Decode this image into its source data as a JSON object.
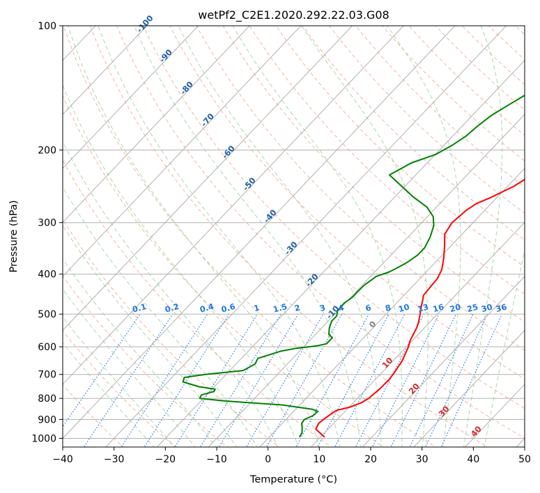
{
  "chart_data": {
    "type": "line",
    "title": "wetPf2_C2E1.2020.292.22.03.G08",
    "xlabel": "Temperature (°C)",
    "ylabel": "Pressure (hPa)",
    "xlim": [
      -40,
      50
    ],
    "ylim": [
      1050,
      100
    ],
    "y_scale": "log",
    "grid": true,
    "x_ticks": [
      -40,
      -30,
      -20,
      -10,
      0,
      10,
      20,
      30,
      40,
      50
    ],
    "y_ticks": [
      1000,
      900,
      800,
      700,
      600,
      500,
      400,
      300,
      200,
      100
    ],
    "series": [
      {
        "color": "#ff0000",
        "points": [
          [
            10.8,
            993
          ],
          [
            7.6,
            950
          ],
          [
            7.1,
            920
          ],
          [
            7.3,
            900
          ],
          [
            7.8,
            870
          ],
          [
            8.2,
            855
          ],
          [
            10.2,
            840
          ],
          [
            11.6,
            820
          ],
          [
            12.2,
            800
          ],
          [
            12.6,
            760
          ],
          [
            12.7,
            720
          ],
          [
            12.4,
            690
          ],
          [
            11.8,
            650
          ],
          [
            10.4,
            600
          ],
          [
            9.6,
            580
          ],
          [
            8.5,
            540
          ],
          [
            7.9,
            525
          ],
          [
            6.9,
            505
          ],
          [
            5.5,
            480
          ],
          [
            4.4,
            460
          ],
          [
            3.8,
            450
          ],
          [
            3.6,
            430
          ],
          [
            3.4,
            410
          ],
          [
            2.6,
            390
          ],
          [
            0.8,
            365
          ],
          [
            -1.4,
            340
          ],
          [
            -3.4,
            320
          ],
          [
            -4.1,
            300
          ],
          [
            -3.6,
            280
          ],
          [
            -2.9,
            270
          ],
          [
            -1.1,
            260
          ],
          [
            1.2,
            245
          ],
          [
            2.6,
            230
          ],
          [
            3.9,
            215
          ],
          [
            5.1,
            200
          ],
          [
            6.6,
            190
          ],
          [
            8.4,
            180
          ],
          [
            10.4,
            170
          ],
          [
            11.9,
            160
          ],
          [
            13.4,
            150
          ],
          [
            15.1,
            140
          ],
          [
            16.8,
            130
          ],
          [
            18.6,
            120
          ],
          [
            20.4,
            115
          ],
          [
            22.4,
            110
          ],
          [
            23.6,
            106
          ],
          [
            24.3,
            100
          ]
        ]
      },
      {
        "color": "#008000",
        "points": [
          [
            5.9,
            993
          ],
          [
            5.6,
            970
          ],
          [
            4.6,
            940
          ],
          [
            3.8,
            920
          ],
          [
            3.6,
            900
          ],
          [
            4.6,
            880
          ],
          [
            4.7,
            860
          ],
          [
            3.2,
            850
          ],
          [
            -3.3,
            830
          ],
          [
            -15.3,
            812
          ],
          [
            -20.7,
            800
          ],
          [
            -21.0,
            785
          ],
          [
            -19.2,
            770
          ],
          [
            -19.4,
            760
          ],
          [
            -22.9,
            750
          ],
          [
            -27.0,
            730
          ],
          [
            -27.6,
            712
          ],
          [
            -24.1,
            700
          ],
          [
            -17.4,
            685
          ],
          [
            -16.3,
            660
          ],
          [
            -16.8,
            640
          ],
          [
            -13.7,
            615
          ],
          [
            -11.2,
            605
          ],
          [
            -7.7,
            597
          ],
          [
            -6.1,
            590
          ],
          [
            -6.1,
            570
          ],
          [
            -7.4,
            560
          ],
          [
            -8.5,
            540
          ],
          [
            -9.3,
            520
          ],
          [
            -9.3,
            505
          ],
          [
            -10.1,
            490
          ],
          [
            -10.2,
            470
          ],
          [
            -9.7,
            455
          ],
          [
            -9.7,
            440
          ],
          [
            -9.6,
            425
          ],
          [
            -8.9,
            405
          ],
          [
            -7.2,
            395
          ],
          [
            -6.3,
            385
          ],
          [
            -5.5,
            375
          ],
          [
            -4.8,
            360
          ],
          [
            -4.8,
            345
          ],
          [
            -5.7,
            325
          ],
          [
            -7.1,
            305
          ],
          [
            -8.9,
            290
          ],
          [
            -11.9,
            275
          ],
          [
            -16.4,
            260
          ],
          [
            -20.6,
            245
          ],
          [
            -25.1,
            230
          ],
          [
            -23.1,
            215
          ],
          [
            -19.9,
            205
          ],
          [
            -18.4,
            195
          ],
          [
            -17.4,
            185
          ],
          [
            -17.0,
            175
          ],
          [
            -16.3,
            165
          ],
          [
            -14.8,
            155
          ],
          [
            -13.1,
            145
          ],
          [
            -11.5,
            135
          ],
          [
            -9.9,
            126
          ],
          [
            -8.1,
            118
          ],
          [
            -6.1,
            112
          ],
          [
            -4.5,
            105
          ],
          [
            -3.9,
            100
          ]
        ]
      }
    ],
    "isotherm_labels": [
      "-100",
      "-90",
      "-80",
      "-70",
      "-60",
      "-50",
      "-40",
      "-30",
      "-20",
      "-10",
      "0",
      "10",
      "20",
      "30",
      "40"
    ],
    "mixing_ratio_labels": [
      "0.1",
      "0.2",
      "0.4",
      "0.6",
      "1",
      "1.5",
      "2",
      "3",
      "4",
      "6",
      "8",
      "10",
      "13",
      "16",
      "20",
      "25",
      "30",
      "36"
    ],
    "colors": {
      "temperature": "#ff0000",
      "dewpoint": "#008000",
      "dry_adiabat": "#f0a080",
      "moist_adiabat": "#90c890",
      "mixing_ratio": "#1f77e0",
      "isotherm_label": "#1f5fa0",
      "isotherm_label_positive": "#d62728",
      "isotherm_label_zero": "#808080"
    }
  }
}
